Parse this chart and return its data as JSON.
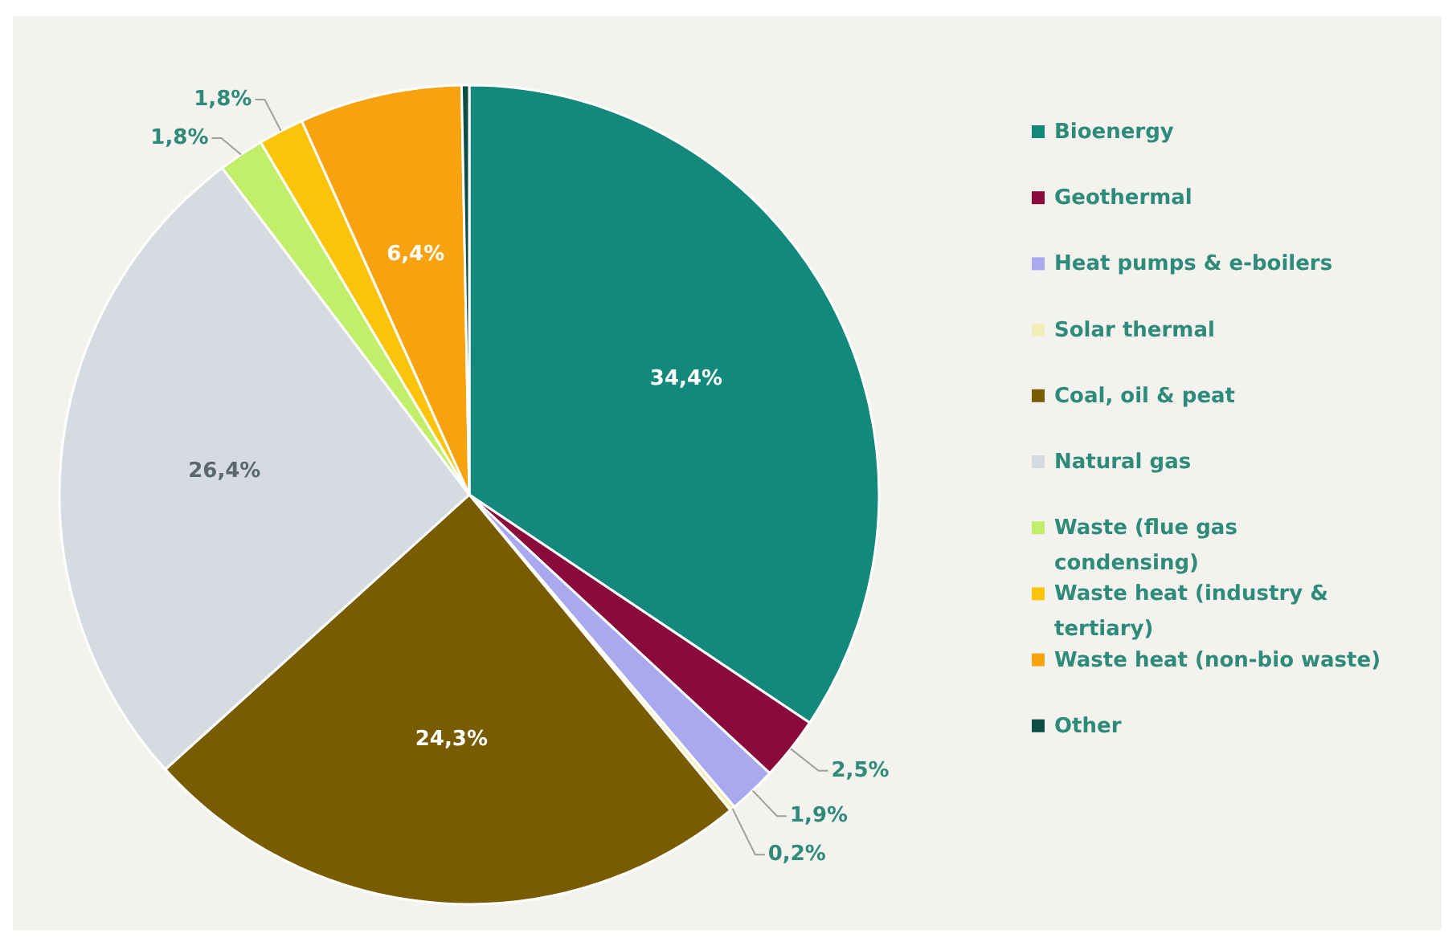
{
  "chart_data": {
    "type": "pie",
    "categories": [
      "Bioenergy",
      "Geothermal",
      "Heat pumps & e-boilers",
      "Solar thermal",
      "Coal, oil & peat",
      "Natural gas",
      "Waste (flue gas condensing)",
      "Waste heat (industry & tertiary)",
      "Waste heat (non-bio waste)",
      "Other"
    ],
    "values": [
      34.4,
      2.5,
      1.9,
      0.2,
      24.3,
      26.4,
      1.8,
      1.8,
      6.4,
      0.3
    ],
    "value_labels": [
      "34,4%",
      "2,5%",
      "1,9%",
      "0,2%",
      "24,3%",
      "26,4%",
      "1,8%",
      "1,8%",
      "6,4%",
      null
    ],
    "colors": [
      "#12897a",
      "#8b0a3c",
      "#a9a9f0",
      "#f2eeb8",
      "#7a5c00",
      "#d5dbe0",
      "#c2ef6a",
      "#fcc30b",
      "#f7a20f",
      "#0d4d44"
    ],
    "legend": "right"
  }
}
